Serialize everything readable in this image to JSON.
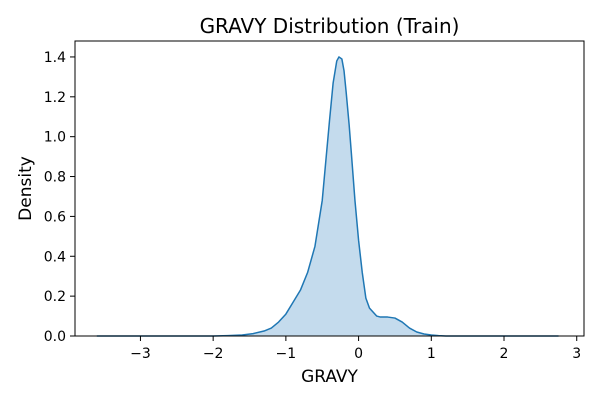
{
  "chart_data": {
    "type": "area",
    "title": "GRAVY Distribution (Train)",
    "xlabel": "GRAVY",
    "ylabel": "Density",
    "xlim": [
      -3.9,
      3.1
    ],
    "ylim": [
      0,
      1.48
    ],
    "x_ticks": [
      -3,
      -2,
      -1,
      0,
      1,
      2,
      3
    ],
    "x_tick_labels": [
      "−3",
      "−2",
      "−1",
      "0",
      "1",
      "2",
      "3"
    ],
    "y_ticks": [
      0.0,
      0.2,
      0.4,
      0.6,
      0.8,
      1.0,
      1.2,
      1.4
    ],
    "y_tick_labels": [
      "0.0",
      "0.2",
      "0.4",
      "0.6",
      "0.8",
      "1.0",
      "1.2",
      "1.4"
    ],
    "grid": false,
    "series": [
      {
        "line_color": "#1f77b4",
        "fill_color": "#c4dbed",
        "x": [
          -3.6,
          -3.0,
          -2.5,
          -2.0,
          -1.8,
          -1.6,
          -1.45,
          -1.3,
          -1.2,
          -1.1,
          -1.0,
          -0.9,
          -0.8,
          -0.7,
          -0.6,
          -0.5,
          -0.45,
          -0.4,
          -0.35,
          -0.3,
          -0.27,
          -0.23,
          -0.2,
          -0.17,
          -0.13,
          -0.1,
          -0.05,
          0.0,
          0.05,
          0.1,
          0.15,
          0.2,
          0.25,
          0.3,
          0.4,
          0.5,
          0.6,
          0.7,
          0.8,
          0.9,
          1.0,
          1.1,
          1.2,
          1.35,
          1.5,
          1.8,
          2.2,
          2.75
        ],
        "y": [
          0.0,
          0.0,
          0.0,
          0.0,
          0.002,
          0.005,
          0.012,
          0.025,
          0.04,
          0.07,
          0.11,
          0.17,
          0.23,
          0.32,
          0.45,
          0.68,
          0.88,
          1.08,
          1.27,
          1.38,
          1.4,
          1.39,
          1.33,
          1.22,
          1.06,
          0.92,
          0.68,
          0.48,
          0.32,
          0.19,
          0.14,
          0.12,
          0.1,
          0.095,
          0.095,
          0.09,
          0.07,
          0.04,
          0.02,
          0.01,
          0.005,
          0.002,
          0.0,
          0.0,
          0.0,
          0.0,
          0.0,
          0.0
        ]
      }
    ]
  }
}
